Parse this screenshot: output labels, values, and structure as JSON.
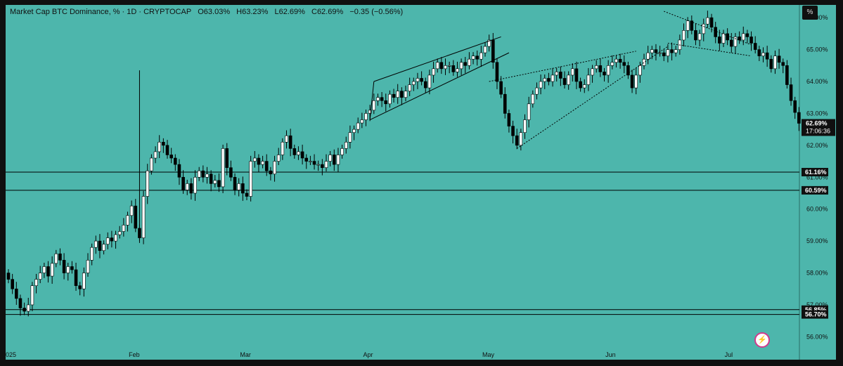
{
  "header": {
    "symbol": "Market Cap BTC Dominance, % · 1D · CRYPTOCAP",
    "open": "O63.03%",
    "high": "H63.23%",
    "low": "L62.69%",
    "close": "C62.69%",
    "change": "−0.35 (−0.56%)"
  },
  "toolbar": {
    "scale_button": "%"
  },
  "colors": {
    "background": "#4db6ac",
    "frame": "#101010",
    "candle_up": "#ffffff",
    "candle_down": "#000000",
    "line": "#000000"
  },
  "icons": {
    "bolt": "lightning-icon"
  },
  "chart_data": {
    "type": "candlestick",
    "title": "Market Cap BTC Dominance",
    "ylabel": "%",
    "ylim": [
      55.7,
      66.4
    ],
    "y_ticks": [
      "66.00%",
      "65.00%",
      "64.00%",
      "63.00%",
      "62.00%",
      "61.00%",
      "60.00%",
      "59.00%",
      "58.00%",
      "57.00%",
      "56.00%"
    ],
    "x_tick_labels": [
      "025",
      "Feb",
      "Mar",
      "Apr",
      "May",
      "Jun",
      "Jul"
    ],
    "x_tick_days": [
      0,
      31,
      59,
      90,
      120,
      151,
      181
    ],
    "last_price": "62.69%",
    "countdown": "17:06:36",
    "horizontal_levels": [
      {
        "label": "61.16%",
        "value": 61.16
      },
      {
        "label": "60.59%",
        "value": 60.59
      },
      {
        "label": "56.85%",
        "value": 56.85
      },
      {
        "label": "56.70%",
        "value": 56.7
      }
    ],
    "close_series": [
      57.8,
      57.5,
      57.2,
      56.9,
      56.8,
      57.0,
      57.6,
      57.8,
      58.0,
      58.2,
      57.9,
      58.3,
      58.6,
      58.4,
      58.0,
      58.2,
      58.1,
      57.6,
      57.5,
      58.0,
      58.4,
      58.8,
      59.0,
      58.7,
      58.9,
      59.1,
      59.0,
      59.2,
      59.3,
      59.5,
      59.8,
      60.1,
      59.4,
      59.1,
      60.4,
      61.2,
      61.6,
      61.8,
      62.1,
      62.0,
      61.7,
      61.6,
      61.4,
      61.0,
      60.6,
      60.8,
      60.5,
      61.0,
      61.2,
      61.0,
      61.1,
      60.8,
      60.9,
      60.7,
      61.9,
      61.3,
      61.0,
      60.6,
      60.8,
      60.5,
      60.4,
      61.5,
      61.6,
      61.4,
      61.5,
      61.2,
      61.1,
      61.5,
      61.7,
      62.1,
      62.3,
      61.9,
      61.7,
      61.8,
      61.6,
      61.5,
      61.5,
      61.4,
      61.4,
      61.3,
      61.5,
      61.7,
      61.4,
      61.7,
      61.9,
      62.1,
      62.4,
      62.5,
      62.7,
      62.8,
      63.0,
      63.1,
      63.4,
      63.5,
      63.4,
      63.3,
      63.6,
      63.5,
      63.7,
      63.5,
      63.7,
      63.9,
      64.0,
      64.1,
      64.0,
      63.8,
      64.2,
      64.4,
      64.6,
      64.4,
      64.5,
      64.5,
      64.3,
      64.4,
      64.6,
      64.5,
      64.7,
      64.8,
      64.7,
      64.9,
      65.1,
      65.3,
      64.6,
      64.0,
      63.6,
      63.0,
      62.6,
      62.3,
      62.0,
      62.4,
      62.8,
      63.3,
      63.6,
      63.8,
      64.0,
      64.1,
      64.0,
      64.2,
      64.3,
      64.1,
      63.9,
      64.2,
      64.4,
      64.0,
      63.8,
      63.9,
      64.2,
      64.4,
      64.5,
      64.3,
      64.2,
      64.5,
      64.6,
      64.7,
      64.6,
      64.5,
      64.2,
      63.8,
      64.2,
      64.5,
      64.7,
      64.9,
      65.0,
      64.9,
      64.9,
      64.8,
      65.0,
      64.9,
      65.0,
      65.3,
      65.6,
      65.9,
      65.6,
      65.3,
      65.5,
      65.8,
      66.0,
      65.7,
      65.4,
      65.2,
      65.5,
      65.3,
      65.1,
      65.4,
      65.3,
      65.5,
      65.4,
      65.2,
      65.0,
      64.8,
      64.9,
      64.7,
      64.4,
      64.8,
      64.6,
      64.5,
      63.9,
      63.4,
      63.03,
      62.69
    ]
  }
}
